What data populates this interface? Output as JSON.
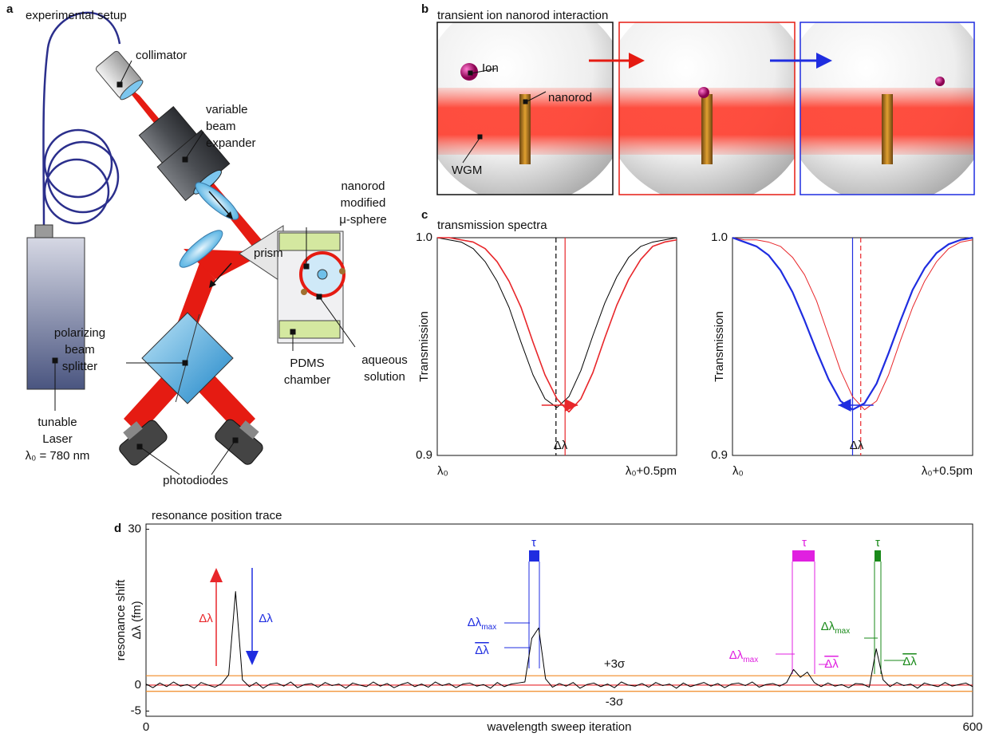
{
  "panel_a": {
    "letter": "a",
    "title": "experimental setup",
    "labels": [
      [
        "collimator"
      ],
      [
        "variable",
        "beam",
        "expander"
      ],
      [
        "nanorod",
        "modified",
        "μ-sphere"
      ],
      [
        "prism"
      ],
      [
        "aqueous",
        "solution"
      ],
      [
        "polarizing",
        "beam",
        "splitter"
      ],
      [
        "PDMS",
        "chamber"
      ],
      [
        "tunable",
        "Laser",
        "λ₀ = 780 nm"
      ],
      [
        "photodiodes"
      ]
    ]
  },
  "panel_b": {
    "letter": "b",
    "title": "transient ion nanorod interaction",
    "labels": [
      "Ion",
      "nanorod",
      "WGM"
    ]
  },
  "panel_c": {
    "letter": "c",
    "title": "transmission spectra"
  },
  "panel_d": {
    "letter": "d",
    "title": "resonance position trace"
  },
  "chart_data": [
    {
      "type": "line",
      "ylabel": "Transmission",
      "x": [
        0,
        0.025,
        0.05,
        0.075,
        0.1,
        0.125,
        0.15,
        0.175,
        0.2,
        0.225,
        0.25,
        0.275,
        0.3,
        0.325,
        0.35,
        0.375,
        0.4,
        0.425,
        0.45,
        0.475,
        0.5
      ],
      "series": [
        {
          "color": "#000000",
          "line_width": 1,
          "values": [
            1.0,
            0.999,
            0.998,
            0.995,
            0.989,
            0.98,
            0.968,
            0.952,
            0.937,
            0.926,
            0.922,
            0.927,
            0.939,
            0.955,
            0.97,
            0.982,
            0.991,
            0.996,
            0.998,
            0.999,
            1.0
          ]
        },
        {
          "color": "#e8262a",
          "line_width": 1.6,
          "values": [
            1.0,
            1.0,
            0.999,
            0.998,
            0.995,
            0.989,
            0.98,
            0.968,
            0.952,
            0.937,
            0.926,
            0.92,
            0.926,
            0.938,
            0.954,
            0.969,
            0.981,
            0.99,
            0.996,
            0.998,
            0.999
          ]
        }
      ],
      "markers": [
        {
          "x": 0.248,
          "color": "#000000",
          "dash": true
        },
        {
          "x": 0.267,
          "color": "#e8262a",
          "dash": false
        }
      ],
      "shift": {
        "label": "Δλ",
        "color": "#e8262a",
        "direction": "right"
      },
      "xlim": [
        0,
        0.5
      ],
      "ylim": [
        0.9,
        1.0
      ],
      "xticks": [
        {
          "value": 0,
          "label": "λ₀"
        },
        {
          "value": 0.5,
          "label": "λ₀+0.5pm"
        }
      ],
      "yticks": [
        0.9,
        {
          "value": 1.0,
          "label": "1.0"
        }
      ]
    },
    {
      "type": "line",
      "ylabel": "Transmission",
      "x": [
        0,
        0.025,
        0.05,
        0.075,
        0.1,
        0.125,
        0.15,
        0.175,
        0.2,
        0.225,
        0.25,
        0.275,
        0.3,
        0.325,
        0.35,
        0.375,
        0.4,
        0.425,
        0.45,
        0.475,
        0.5
      ],
      "series": [
        {
          "color": "#e8262a",
          "line_width": 1,
          "values": [
            1.0,
            0.999,
            0.999,
            0.998,
            0.996,
            0.991,
            0.983,
            0.971,
            0.955,
            0.939,
            0.927,
            0.921,
            0.925,
            0.937,
            0.953,
            0.968,
            0.98,
            0.989,
            0.995,
            0.998,
            0.999
          ]
        },
        {
          "color": "#1f2de0",
          "line_width": 2.2,
          "values": [
            1.0,
            0.998,
            0.996,
            0.992,
            0.985,
            0.975,
            0.962,
            0.948,
            0.935,
            0.925,
            0.921,
            0.924,
            0.933,
            0.947,
            0.962,
            0.976,
            0.986,
            0.993,
            0.997,
            0.999,
            1.0
          ]
        }
      ],
      "markers": [
        {
          "x": 0.25,
          "color": "#1f2de0",
          "dash": false
        },
        {
          "x": 0.267,
          "color": "#e8262a",
          "dash": true
        }
      ],
      "shift": {
        "label": "Δλ",
        "color": "#1f2de0",
        "direction": "left"
      },
      "xlim": [
        0,
        0.5
      ],
      "ylim": [
        0.9,
        1.0
      ],
      "xticks": [
        {
          "value": 0,
          "label": "λ₀"
        },
        {
          "value": 0.5,
          "label": "λ₀+0.5pm"
        }
      ],
      "yticks": [
        0.9,
        {
          "value": 1.0,
          "label": "1.0"
        }
      ]
    },
    {
      "type": "line",
      "xlabel": "wavelength sweep iteration",
      "ylabel": [
        "resonance shift",
        "Δλ (fm)"
      ],
      "x": [
        0,
        5,
        10,
        15,
        20,
        25,
        30,
        35,
        40,
        45,
        50,
        55,
        60,
        65,
        70,
        75,
        80,
        85,
        90,
        95,
        100,
        105,
        110,
        115,
        120,
        125,
        130,
        135,
        140,
        145,
        150,
        155,
        160,
        165,
        170,
        175,
        180,
        185,
        190,
        195,
        200,
        205,
        210,
        215,
        220,
        225,
        230,
        235,
        240,
        245,
        250,
        255,
        260,
        265,
        270,
        275,
        280,
        285,
        290,
        295,
        300,
        305,
        310,
        315,
        320,
        325,
        330,
        335,
        340,
        345,
        350,
        355,
        360,
        365,
        370,
        375,
        380,
        385,
        390,
        395,
        400,
        405,
        410,
        415,
        420,
        425,
        430,
        435,
        440,
        445,
        450,
        455,
        460,
        465,
        470,
        475,
        480,
        485,
        490,
        495,
        500,
        505,
        510,
        515,
        520,
        525,
        530,
        535,
        540,
        545,
        550,
        555,
        560,
        565,
        570,
        575,
        580,
        585,
        590,
        595,
        600
      ],
      "series": [
        {
          "color": "#000000",
          "line_width": 1,
          "values": [
            0.2,
            -0.5,
            0.4,
            -0.3,
            0.6,
            -0.2,
            0.1,
            -0.6,
            0.5,
            0.0,
            -0.4,
            0.3,
            2.0,
            18.0,
            1.0,
            -0.3,
            0.5,
            -0.6,
            0.2,
            0.4,
            -0.2,
            0.6,
            -0.5,
            0.1,
            0.3,
            -0.4,
            0.5,
            -0.1,
            0.2,
            -0.6,
            0.4,
            0.0,
            -0.3,
            0.6,
            -0.2,
            0.3,
            -0.5,
            0.1,
            0.5,
            -0.3,
            0.2,
            -0.4,
            0.6,
            -0.1,
            0.3,
            -0.5,
            0.2,
            0.4,
            -0.2,
            0.1,
            -0.6,
            0.5,
            -0.3,
            0.2,
            0.4,
            0.6,
            9.0,
            11.0,
            1.2,
            -0.4,
            0.3,
            -0.2,
            0.5,
            -0.6,
            0.1,
            0.4,
            -0.3,
            0.2,
            -0.5,
            0.6,
            0.0,
            -0.2,
            0.3,
            -0.4,
            0.5,
            -0.1,
            0.2,
            -0.6,
            0.4,
            -0.3,
            0.1,
            0.5,
            -0.2,
            0.3,
            -0.5,
            0.2,
            0.4,
            -0.1,
            0.6,
            -0.4,
            0.1,
            0.3,
            -0.2,
            0.5,
            3.0,
            1.5,
            2.5,
            0.5,
            -0.3,
            0.4,
            -0.2,
            0.1,
            -0.5,
            0.3,
            0.2,
            -0.4,
            7.0,
            1.0,
            -0.3,
            0.5,
            -0.1,
            0.2,
            -0.6,
            0.4,
            0.0,
            -0.3,
            0.5,
            -0.2,
            0.1,
            0.4,
            -0.3
          ]
        }
      ],
      "reference_lines": [
        {
          "value": 0,
          "color": "#e8262a"
        },
        {
          "value": 1.8,
          "label": "+3σ",
          "color": "#f08a24"
        },
        {
          "value": -1.2,
          "label": "-3σ",
          "color": "#f08a24"
        }
      ],
      "annotations": [
        {
          "text": "Δλ",
          "color": "#e8262a"
        },
        {
          "text": "Δλ",
          "color": "#1f2de0"
        },
        {
          "text": "τ",
          "color": "#1f2de0"
        },
        {
          "text": "Δλ",
          "sub": "max",
          "color": "#1f2de0"
        },
        {
          "text": "Δλ",
          "overline": true,
          "color": "#1f2de0"
        },
        {
          "text": "τ",
          "color": "#e020e0"
        },
        {
          "text": "Δλ",
          "sub": "max",
          "color": "#e020e0"
        },
        {
          "text": "Δλ",
          "overline": true,
          "color": "#e020e0"
        },
        {
          "text": "τ",
          "color": "#1a8a1a"
        },
        {
          "text": "Δλ",
          "sub": "max",
          "color": "#1a8a1a"
        },
        {
          "text": "Δλ",
          "overline": true,
          "color": "#1a8a1a"
        }
      ],
      "xlim": [
        0,
        600
      ],
      "ylim": [
        -6,
        31
      ],
      "xticks": [
        0,
        600
      ],
      "yticks": [
        30,
        0,
        -5
      ]
    }
  ]
}
